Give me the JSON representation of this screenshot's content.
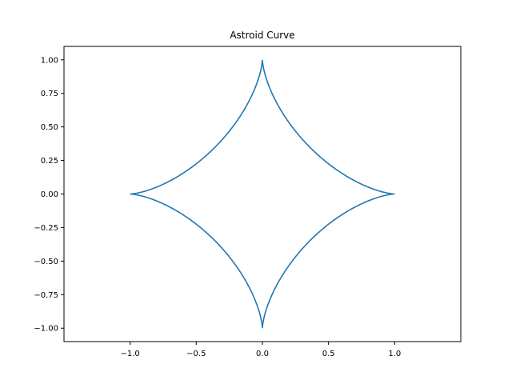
{
  "chart_data": {
    "type": "line",
    "title": "Astroid Curve",
    "xlabel": "",
    "ylabel": "",
    "xlim": [
      -1.5,
      1.5
    ],
    "ylim": [
      -1.1,
      1.1
    ],
    "x_ticks": [
      -1.0,
      -0.5,
      0.0,
      0.5,
      1.0
    ],
    "y_ticks": [
      -1.0,
      -0.75,
      -0.5,
      -0.25,
      0.0,
      0.25,
      0.5,
      0.75,
      1.0
    ],
    "x_tick_labels": [
      "−1.0",
      "−0.5",
      "0.0",
      "0.5",
      "1.0"
    ],
    "y_tick_labels": [
      "−1.00",
      "−0.75",
      "−0.50",
      "−0.25",
      "0.00",
      "0.25",
      "0.50",
      "0.75",
      "1.00"
    ],
    "grid": false,
    "legend": "none",
    "series": [
      {
        "color": "#1f77b4",
        "equation": "x = cos(t)^3, y = sin(t)^3",
        "t_range": [
          0,
          6.283185307
        ]
      }
    ]
  }
}
